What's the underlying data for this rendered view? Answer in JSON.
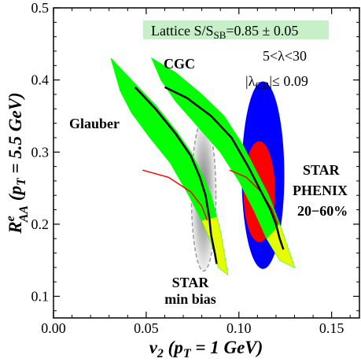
{
  "chart_data": {
    "type": "scatter",
    "xlabel": "v₂ (pₜ = 1 GeV)",
    "ylabel": "Rᵉₐₐ (pₜ = 5.5 GeV)",
    "xlim": [
      0.0,
      0.165
    ],
    "ylim": [
      0.07,
      0.5
    ],
    "x_ticks": [
      "0.00",
      "0.05",
      "0.10",
      "0.15"
    ],
    "x_tick_values": [
      0.0,
      0.05,
      0.1,
      0.15
    ],
    "y_ticks": [
      "0.1",
      "0.2",
      "0.3",
      "0.4",
      "0.5"
    ],
    "y_tick_values": [
      0.1,
      0.2,
      0.3,
      0.4,
      0.5
    ],
    "grid": false,
    "annotations": {
      "lattice": "Lattice S/S",
      "lattice_sub": "SB",
      "lattice_val": "=0.85 ± 0.05",
      "lambda_range": "5<λ<30",
      "lambda_gb_pre": "|λ",
      "lambda_gb_sub": "GB",
      "lambda_gb_post": "|≤ 0.09",
      "glauber": "Glauber",
      "cgc": "CGC",
      "star": "STAR",
      "phenix": "PHENIX",
      "centrality": "20−60%",
      "star_minbias_1": "STAR",
      "star_minbias_2": "min bias"
    },
    "colors": {
      "star": "#0000ff",
      "phenix": "#ff0000",
      "band": "#00ff00",
      "band_inner": "#ffff00",
      "curve": "#000000",
      "lattice_box": "#c8f0c8",
      "minbias": "#999999"
    },
    "series": [
      {
        "name": "Glauber",
        "band": [
          [
            0.031,
            0.43
          ],
          [
            0.042,
            0.4
          ],
          [
            0.055,
            0.365
          ],
          [
            0.066,
            0.33
          ],
          [
            0.074,
            0.3
          ],
          [
            0.08,
            0.27
          ],
          [
            0.085,
            0.24
          ],
          [
            0.088,
            0.21
          ],
          [
            0.09,
            0.19
          ],
          [
            0.094,
            0.13
          ],
          [
            0.089,
            0.14
          ],
          [
            0.085,
            0.175
          ],
          [
            0.08,
            0.205
          ],
          [
            0.073,
            0.24
          ],
          [
            0.063,
            0.285
          ],
          [
            0.052,
            0.32
          ],
          [
            0.042,
            0.355
          ],
          [
            0.036,
            0.385
          ]
        ],
        "curve": [
          [
            0.044,
            0.39
          ],
          [
            0.055,
            0.36
          ],
          [
            0.066,
            0.325
          ],
          [
            0.074,
            0.295
          ],
          [
            0.079,
            0.265
          ],
          [
            0.082,
            0.24
          ],
          [
            0.084,
            0.21
          ],
          [
            0.085,
            0.185
          ]
        ],
        "curve_low": [
          [
            0.085,
            0.185
          ],
          [
            0.087,
            0.16
          ],
          [
            0.088,
            0.145
          ]
        ],
        "red": [
          [
            0.048,
            0.275
          ],
          [
            0.062,
            0.265
          ],
          [
            0.074,
            0.245
          ],
          [
            0.08,
            0.225
          ],
          [
            0.083,
            0.205
          ]
        ]
      },
      {
        "name": "CGC",
        "band": [
          [
            0.053,
            0.43
          ],
          [
            0.066,
            0.41
          ],
          [
            0.08,
            0.38
          ],
          [
            0.092,
            0.35
          ],
          [
            0.102,
            0.31
          ],
          [
            0.11,
            0.27
          ],
          [
            0.116,
            0.24
          ],
          [
            0.122,
            0.2
          ],
          [
            0.13,
            0.14
          ],
          [
            0.122,
            0.15
          ],
          [
            0.115,
            0.18
          ],
          [
            0.108,
            0.22
          ],
          [
            0.1,
            0.26
          ],
          [
            0.09,
            0.3
          ],
          [
            0.078,
            0.335
          ],
          [
            0.066,
            0.37
          ],
          [
            0.058,
            0.4
          ]
        ],
        "curve": [
          [
            0.06,
            0.39
          ],
          [
            0.072,
            0.375
          ],
          [
            0.085,
            0.35
          ],
          [
            0.096,
            0.32
          ],
          [
            0.105,
            0.28
          ],
          [
            0.112,
            0.245
          ],
          [
            0.117,
            0.22
          ],
          [
            0.12,
            0.2
          ]
        ],
        "curve_low": [
          [
            0.12,
            0.2
          ],
          [
            0.122,
            0.18
          ],
          [
            0.124,
            0.165
          ]
        ],
        "red": [
          [
            0.095,
            0.275
          ],
          [
            0.104,
            0.265
          ],
          [
            0.112,
            0.245
          ],
          [
            0.118,
            0.22
          ],
          [
            0.121,
            0.2
          ]
        ]
      }
    ],
    "data_regions": [
      {
        "name": "STAR",
        "cx": 0.113,
        "cy": 0.268,
        "rx": 0.0115,
        "ry": 0.13
      },
      {
        "name": "PHENIX",
        "cx": 0.111,
        "cy": 0.245,
        "rx": 0.0085,
        "ry": 0.07
      },
      {
        "name": "STAR min bias",
        "cx": 0.081,
        "cy": 0.24,
        "rx": 0.0066,
        "ry": 0.105
      }
    ]
  }
}
